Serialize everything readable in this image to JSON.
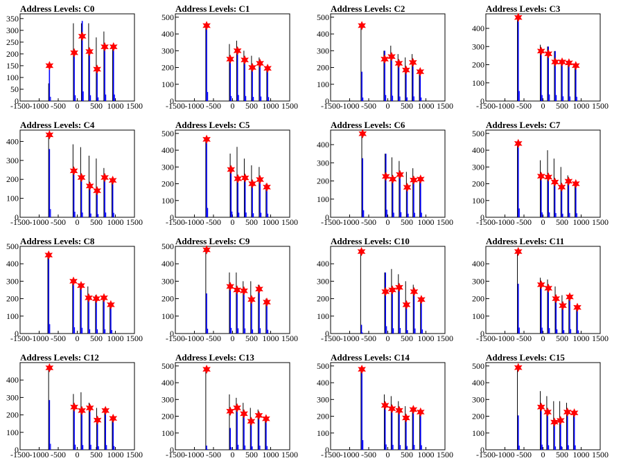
{
  "page": {
    "background": "#ffffff"
  },
  "style": {
    "frame_color": "#000000",
    "hist_color": "#0000ff",
    "spike_color": "#000000",
    "star_color": "#ff0000"
  },
  "chart_data": [
    {
      "type": "bar",
      "title": "Address Levels: C0",
      "xlim": [
        -1500,
        1500
      ],
      "ylim": [
        0,
        370
      ],
      "yticks": [
        0,
        50,
        100,
        150,
        200,
        250,
        300,
        350
      ],
      "xticks": [
        -1500,
        -1000,
        -500,
        0,
        500,
        1000,
        1500
      ],
      "peaks": [
        {
          "x": -730,
          "blue": 150,
          "black": 75,
          "star": 150
        },
        {
          "x": -80,
          "blue": 205,
          "black": 330,
          "star": 205
        },
        {
          "x": 130,
          "blue": 340,
          "black": 330,
          "star": 275
        },
        {
          "x": 320,
          "blue": 205,
          "black": 330,
          "star": 210
        },
        {
          "x": 520,
          "blue": 130,
          "black": 270,
          "star": 135
        },
        {
          "x": 720,
          "blue": 230,
          "black": 295,
          "star": 230
        },
        {
          "x": 950,
          "blue": 230,
          "black": 230,
          "star": 230
        }
      ]
    },
    {
      "type": "bar",
      "title": "Address Levels: C1",
      "xlim": [
        -1500,
        1500
      ],
      "ylim": [
        0,
        520
      ],
      "yticks": [
        0,
        100,
        200,
        300,
        400,
        500
      ],
      "xticks": [
        -1500,
        -1000,
        -500,
        0,
        500,
        1000,
        1500
      ],
      "peaks": [
        {
          "x": -680,
          "blue": 450,
          "black": 450,
          "star": 450
        },
        {
          "x": -60,
          "blue": 250,
          "black": 340,
          "star": 250
        },
        {
          "x": 130,
          "blue": 300,
          "black": 360,
          "star": 300
        },
        {
          "x": 320,
          "blue": 250,
          "black": 300,
          "star": 245
        },
        {
          "x": 520,
          "blue": 205,
          "black": 270,
          "star": 200
        },
        {
          "x": 720,
          "blue": 225,
          "black": 260,
          "star": 225
        },
        {
          "x": 920,
          "blue": 195,
          "black": 200,
          "star": 195
        }
      ]
    },
    {
      "type": "bar",
      "title": "Address Levels: C2",
      "xlim": [
        -1500,
        1500
      ],
      "ylim": [
        0,
        520
      ],
      "yticks": [
        0,
        100,
        200,
        300,
        400,
        500
      ],
      "xticks": [
        -1500,
        -1000,
        -500,
        0,
        500,
        1000,
        1500
      ],
      "peaks": [
        {
          "x": -680,
          "blue": 175,
          "black": 450,
          "star": 450
        },
        {
          "x": -80,
          "blue": 300,
          "black": 300,
          "star": 250
        },
        {
          "x": 100,
          "blue": 265,
          "black": 330,
          "star": 265
        },
        {
          "x": 290,
          "blue": 225,
          "black": 280,
          "star": 225
        },
        {
          "x": 480,
          "blue": 185,
          "black": 260,
          "star": 185
        },
        {
          "x": 660,
          "blue": 230,
          "black": 280,
          "star": 230
        },
        {
          "x": 850,
          "blue": 175,
          "black": 180,
          "star": 175
        }
      ]
    },
    {
      "type": "bar",
      "title": "Address Levels: C3",
      "xlim": [
        -1500,
        1500
      ],
      "ylim": [
        0,
        480
      ],
      "yticks": [
        0,
        100,
        200,
        300,
        400
      ],
      "xticks": [
        -1500,
        -1000,
        -500,
        0,
        500,
        1000,
        1500
      ],
      "peaks": [
        {
          "x": -650,
          "blue": 460,
          "black": 460,
          "star": 460
        },
        {
          "x": -50,
          "blue": 275,
          "black": 310,
          "star": 275
        },
        {
          "x": 140,
          "blue": 300,
          "black": 300,
          "star": 260
        },
        {
          "x": 320,
          "blue": 275,
          "black": 275,
          "star": 215
        },
        {
          "x": 500,
          "blue": 215,
          "black": 220,
          "star": 215
        },
        {
          "x": 680,
          "blue": 210,
          "black": 215,
          "star": 210
        },
        {
          "x": 860,
          "blue": 195,
          "black": 195,
          "star": 195
        }
      ]
    },
    {
      "type": "bar",
      "title": "Address Levels: C4",
      "xlim": [
        -1500,
        1500
      ],
      "ylim": [
        0,
        460
      ],
      "yticks": [
        0,
        100,
        200,
        300,
        400
      ],
      "xticks": [
        -1500,
        -1000,
        -500,
        0,
        500,
        1000,
        1500
      ],
      "peaks": [
        {
          "x": -730,
          "blue": 360,
          "black": 430,
          "star": 435
        },
        {
          "x": -90,
          "blue": 245,
          "black": 385,
          "star": 245
        },
        {
          "x": 110,
          "blue": 210,
          "black": 370,
          "star": 210
        },
        {
          "x": 330,
          "blue": 165,
          "black": 325,
          "star": 165
        },
        {
          "x": 520,
          "blue": 140,
          "black": 310,
          "star": 140
        },
        {
          "x": 720,
          "blue": 210,
          "black": 260,
          "star": 210
        },
        {
          "x": 930,
          "blue": 195,
          "black": 200,
          "star": 195
        }
      ]
    },
    {
      "type": "bar",
      "title": "Address Levels: C5",
      "xlim": [
        -1500,
        1500
      ],
      "ylim": [
        0,
        520
      ],
      "yticks": [
        0,
        100,
        200,
        300,
        400,
        500
      ],
      "xticks": [
        -1500,
        -1000,
        -500,
        0,
        500,
        1000,
        1500
      ],
      "peaks": [
        {
          "x": -680,
          "blue": 465,
          "black": 465,
          "star": 465
        },
        {
          "x": -40,
          "blue": 285,
          "black": 380,
          "star": 285
        },
        {
          "x": 140,
          "blue": 230,
          "black": 420,
          "star": 230
        },
        {
          "x": 330,
          "blue": 235,
          "black": 350,
          "star": 235
        },
        {
          "x": 520,
          "blue": 200,
          "black": 310,
          "star": 200
        },
        {
          "x": 720,
          "blue": 225,
          "black": 300,
          "star": 225
        },
        {
          "x": 900,
          "blue": 180,
          "black": 200,
          "star": 180
        }
      ]
    },
    {
      "type": "bar",
      "title": "Address Levels: C6",
      "xlim": [
        -1500,
        1500
      ],
      "ylim": [
        0,
        480
      ],
      "yticks": [
        0,
        100,
        200,
        300,
        400
      ],
      "xticks": [
        -1500,
        -1000,
        -500,
        0,
        500,
        1000,
        1500
      ],
      "peaks": [
        {
          "x": -660,
          "blue": 325,
          "black": 460,
          "star": 460
        },
        {
          "x": -50,
          "blue": 350,
          "black": 350,
          "star": 225
        },
        {
          "x": 130,
          "blue": 210,
          "black": 330,
          "star": 210
        },
        {
          "x": 320,
          "blue": 235,
          "black": 310,
          "star": 235
        },
        {
          "x": 510,
          "blue": 165,
          "black": 250,
          "star": 165
        },
        {
          "x": 680,
          "blue": 205,
          "black": 270,
          "star": 205
        },
        {
          "x": 860,
          "blue": 210,
          "black": 210,
          "star": 210
        }
      ]
    },
    {
      "type": "bar",
      "title": "Address Levels: C7",
      "xlim": [
        -1500,
        1500
      ],
      "ylim": [
        0,
        520
      ],
      "yticks": [
        0,
        100,
        200,
        300,
        400,
        500
      ],
      "xticks": [
        -1500,
        -1000,
        -500,
        0,
        500,
        1000,
        1500
      ],
      "peaks": [
        {
          "x": -650,
          "blue": 440,
          "black": 440,
          "star": 440
        },
        {
          "x": -50,
          "blue": 245,
          "black": 340,
          "star": 245
        },
        {
          "x": 140,
          "blue": 240,
          "black": 400,
          "star": 240
        },
        {
          "x": 310,
          "blue": 210,
          "black": 350,
          "star": 210
        },
        {
          "x": 490,
          "blue": 180,
          "black": 300,
          "star": 180
        },
        {
          "x": 670,
          "blue": 215,
          "black": 250,
          "star": 215
        },
        {
          "x": 860,
          "blue": 200,
          "black": 210,
          "star": 200
        }
      ]
    },
    {
      "type": "bar",
      "title": "Address Levels: C8",
      "xlim": [
        -1500,
        1500
      ],
      "ylim": [
        0,
        500
      ],
      "yticks": [
        0,
        100,
        200,
        300,
        400,
        500
      ],
      "xticks": [
        -1500,
        -1000,
        -500,
        0,
        500,
        1000,
        1500
      ],
      "peaks": [
        {
          "x": -750,
          "blue": 450,
          "black": 450,
          "star": 450
        },
        {
          "x": -100,
          "blue": 300,
          "black": 300,
          "star": 300
        },
        {
          "x": 100,
          "blue": 275,
          "black": 280,
          "star": 275
        },
        {
          "x": 300,
          "blue": 205,
          "black": 270,
          "star": 205
        },
        {
          "x": 500,
          "blue": 200,
          "black": 220,
          "star": 200
        },
        {
          "x": 700,
          "blue": 205,
          "black": 210,
          "star": 205
        },
        {
          "x": 880,
          "blue": 165,
          "black": 170,
          "star": 165
        }
      ]
    },
    {
      "type": "bar",
      "title": "Address Levels: C9",
      "xlim": [
        -1500,
        1500
      ],
      "ylim": [
        0,
        500
      ],
      "yticks": [
        0,
        100,
        200,
        300,
        400,
        500
      ],
      "xticks": [
        -1500,
        -1000,
        -500,
        0,
        500,
        1000,
        1500
      ],
      "peaks": [
        {
          "x": -680,
          "blue": 230,
          "black": 480,
          "star": 480
        },
        {
          "x": -60,
          "blue": 270,
          "black": 350,
          "star": 270
        },
        {
          "x": 120,
          "blue": 250,
          "black": 350,
          "star": 250
        },
        {
          "x": 300,
          "blue": 245,
          "black": 300,
          "star": 245
        },
        {
          "x": 500,
          "blue": 195,
          "black": 300,
          "star": 195
        },
        {
          "x": 700,
          "blue": 255,
          "black": 280,
          "star": 255
        },
        {
          "x": 900,
          "blue": 180,
          "black": 200,
          "star": 180
        }
      ]
    },
    {
      "type": "bar",
      "title": "Address Levels: C10",
      "xlim": [
        -1500,
        1500
      ],
      "ylim": [
        0,
        500
      ],
      "yticks": [
        0,
        100,
        200,
        300,
        400
      ],
      "xticks": [
        -1500,
        -1000,
        -500,
        0,
        500,
        1000,
        1500
      ],
      "peaks": [
        {
          "x": -690,
          "blue": 50,
          "black": 470,
          "star": 470
        },
        {
          "x": -60,
          "blue": 350,
          "black": 350,
          "star": 240
        },
        {
          "x": 120,
          "blue": 250,
          "black": 370,
          "star": 250
        },
        {
          "x": 300,
          "blue": 265,
          "black": 340,
          "star": 265
        },
        {
          "x": 490,
          "blue": 165,
          "black": 300,
          "star": 165
        },
        {
          "x": 690,
          "blue": 240,
          "black": 280,
          "star": 240
        },
        {
          "x": 880,
          "blue": 195,
          "black": 200,
          "star": 195
        }
      ]
    },
    {
      "type": "bar",
      "title": "Address Levels: C11",
      "xlim": [
        -1500,
        1500
      ],
      "ylim": [
        0,
        500
      ],
      "yticks": [
        0,
        100,
        200,
        300,
        400
      ],
      "xticks": [
        -1500,
        -1000,
        -500,
        0,
        500,
        1000,
        1500
      ],
      "peaks": [
        {
          "x": -650,
          "blue": 285,
          "black": 470,
          "star": 470
        },
        {
          "x": -50,
          "blue": 280,
          "black": 320,
          "star": 280
        },
        {
          "x": 140,
          "blue": 260,
          "black": 310,
          "star": 260
        },
        {
          "x": 340,
          "blue": 200,
          "black": 270,
          "star": 200
        },
        {
          "x": 520,
          "blue": 160,
          "black": 220,
          "star": 160
        },
        {
          "x": 700,
          "blue": 210,
          "black": 220,
          "star": 210
        },
        {
          "x": 900,
          "blue": 150,
          "black": 150,
          "star": 150
        }
      ]
    },
    {
      "type": "bar",
      "title": "Address Levels: C12",
      "xlim": [
        -1500,
        1500
      ],
      "ylim": [
        0,
        500
      ],
      "yticks": [
        0,
        100,
        200,
        300,
        400
      ],
      "xticks": [
        -1500,
        -1000,
        -500,
        0,
        500,
        1000,
        1500
      ],
      "peaks": [
        {
          "x": -730,
          "blue": 285,
          "black": 470,
          "star": 470
        },
        {
          "x": -80,
          "blue": 245,
          "black": 320,
          "star": 245
        },
        {
          "x": 120,
          "blue": 225,
          "black": 330,
          "star": 225
        },
        {
          "x": 330,
          "blue": 240,
          "black": 270,
          "star": 240
        },
        {
          "x": 530,
          "blue": 170,
          "black": 240,
          "star": 170
        },
        {
          "x": 740,
          "blue": 225,
          "black": 240,
          "star": 225
        },
        {
          "x": 940,
          "blue": 180,
          "black": 185,
          "star": 180
        }
      ]
    },
    {
      "type": "bar",
      "title": "Address Levels: C13",
      "xlim": [
        -1500,
        1500
      ],
      "ylim": [
        0,
        520
      ],
      "yticks": [
        0,
        100,
        200,
        300,
        400,
        500
      ],
      "xticks": [
        -1500,
        -1000,
        -500,
        0,
        500,
        1000,
        1500
      ],
      "peaks": [
        {
          "x": -680,
          "blue": 25,
          "black": 480,
          "star": 480
        },
        {
          "x": -60,
          "blue": 130,
          "black": 330,
          "star": 230
        },
        {
          "x": 120,
          "blue": 250,
          "black": 310,
          "star": 250
        },
        {
          "x": 300,
          "blue": 215,
          "black": 280,
          "star": 215
        },
        {
          "x": 490,
          "blue": 170,
          "black": 250,
          "star": 170
        },
        {
          "x": 690,
          "blue": 205,
          "black": 240,
          "star": 205
        },
        {
          "x": 880,
          "blue": 185,
          "black": 190,
          "star": 185
        }
      ]
    },
    {
      "type": "bar",
      "title": "Address Levels: C14",
      "xlim": [
        -1500,
        1500
      ],
      "ylim": [
        0,
        520
      ],
      "yticks": [
        0,
        100,
        200,
        300,
        400,
        500
      ],
      "xticks": [
        -1500,
        -1000,
        -500,
        0,
        500,
        1000,
        1500
      ],
      "peaks": [
        {
          "x": -680,
          "blue": 480,
          "black": 480,
          "star": 480
        },
        {
          "x": -70,
          "blue": 265,
          "black": 330,
          "star": 265
        },
        {
          "x": 110,
          "blue": 245,
          "black": 320,
          "star": 245
        },
        {
          "x": 300,
          "blue": 235,
          "black": 290,
          "star": 235
        },
        {
          "x": 480,
          "blue": 190,
          "black": 260,
          "star": 190
        },
        {
          "x": 670,
          "blue": 240,
          "black": 250,
          "star": 240
        },
        {
          "x": 860,
          "blue": 225,
          "black": 230,
          "star": 225
        }
      ]
    },
    {
      "type": "bar",
      "title": "Address Levels: C15",
      "xlim": [
        -1500,
        1500
      ],
      "ylim": [
        0,
        520
      ],
      "yticks": [
        0,
        100,
        200,
        300,
        400,
        500
      ],
      "xticks": [
        -1500,
        -1000,
        -500,
        0,
        500,
        1000,
        1500
      ],
      "peaks": [
        {
          "x": -650,
          "blue": 205,
          "black": 490,
          "star": 490
        },
        {
          "x": -50,
          "blue": 255,
          "black": 350,
          "star": 255
        },
        {
          "x": 120,
          "blue": 225,
          "black": 320,
          "star": 225
        },
        {
          "x": 300,
          "blue": 165,
          "black": 290,
          "star": 165
        },
        {
          "x": 460,
          "blue": 175,
          "black": 290,
          "star": 175
        },
        {
          "x": 640,
          "blue": 225,
          "black": 280,
          "star": 225
        },
        {
          "x": 820,
          "blue": 220,
          "black": 230,
          "star": 220
        }
      ]
    }
  ]
}
